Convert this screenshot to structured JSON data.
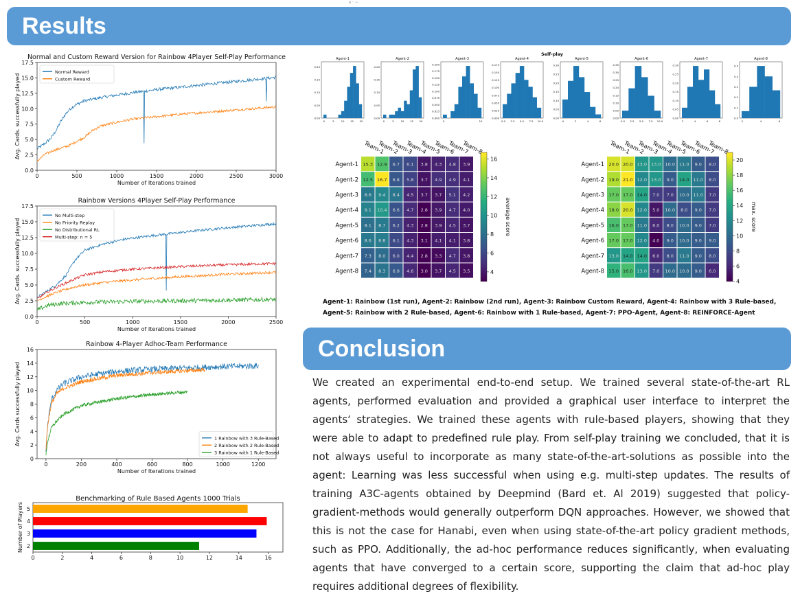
{
  "header": {
    "results_title": "Results",
    "conclusion_title": "Conclusion",
    "top_mark": "s · ∼"
  },
  "colors": {
    "banner": "#5b9bd5",
    "blue": "#1f77b4",
    "orange": "#ff7f0e",
    "green": "#2ca02c",
    "red": "#d62728"
  },
  "legend_text": "Agent-1: Rainbow (1st run), Agent-2: Rainbow (2nd run), Agent-3: Rainbow Custom Reward, Agent-4: Rainbow with 3 Rule-based, Agent-5: Rainbow with 2 Rule-based, Agent-6: Rainbow with 1 Rule-based, Agent-7: PPO-Agent, Agent-8: REINFORCE-Agent",
  "conclusion_text": "We created an experimental end-to-end setup. We trained several state-of-the-art RL agents, performed evaluation and provided a graphical user interface to interpret the agents‘ strategies. We trained these agents with rule-based players, showing that they were able to adapt to predefined rule play. From self-play training we concluded, that it is not always useful to incorporate as many state-of-the-art-solutions as possible into the agent: Learning was less successful when using e.g. multi-step updates. The results of training A3C-agents obtained by Deepmind (Bard et. Al 2019) suggested that policy-gradient-methods would generally outperform DQN approaches. However, we showed that this is not the case for Hanabi, even when using state-of-the-art policy gradient methods, such as PPO. Additionally, the ad-hoc performance reduces significantly, when evaluating agents that have converged to a certain score, supporting the claim that ad-hoc play requires additional degrees of flexibility.",
  "chart_data": [
    {
      "id": "reward",
      "type": "line",
      "title": "Normal and Custom Reward Version for Rainbow 4Player Self-Play Performance",
      "xlabel": "Number of Iterations trained",
      "ylabel": "Avg. Cards. successfully played",
      "xlim": [
        0,
        3000
      ],
      "ylim": [
        0,
        17.5
      ],
      "xticks": [
        0,
        500,
        1000,
        1500,
        2000,
        2500,
        3000
      ],
      "yticks": [
        0.0,
        2.5,
        5.0,
        7.5,
        10.0,
        12.5,
        15.0,
        17.5
      ],
      "legend": "top-left",
      "series": [
        {
          "name": "Normal Reward",
          "color": "#1f77b4",
          "noise": 0.25,
          "x": [
            0,
            60,
            120,
            180,
            240,
            300,
            360,
            420,
            480,
            600,
            800,
            1000,
            1200,
            1500,
            1800,
            2100,
            2400,
            2700,
            3000
          ],
          "y": [
            3.5,
            4.0,
            4.6,
            5.3,
            6.5,
            8.0,
            9.2,
            10.0,
            10.6,
            11.3,
            11.8,
            12.2,
            12.6,
            13.1,
            13.5,
            13.9,
            14.3,
            14.7,
            15.1
          ],
          "spikes": [
            [
              1340,
              4.4
            ],
            [
              2880,
              11.2
            ]
          ]
        },
        {
          "name": "Custom Reward",
          "color": "#ff7f0e",
          "noise": 0.2,
          "x": [
            0,
            100,
            200,
            300,
            400,
            500,
            600,
            700,
            800,
            1000,
            1200,
            1500,
            1800,
            2100,
            2400,
            2700,
            3000
          ],
          "y": [
            1.5,
            2.6,
            3.2,
            3.6,
            4.0,
            4.7,
            5.4,
            6.5,
            7.2,
            7.8,
            8.3,
            8.7,
            9.1,
            9.4,
            9.7,
            10.0,
            10.3
          ],
          "spikes": []
        }
      ]
    },
    {
      "id": "versions",
      "type": "line",
      "title": "Rainbow Versions 4Player Self-Play Performance",
      "xlabel": "Number of Iterations trained",
      "ylabel": "Avg. Cards. successfully played",
      "xlim": [
        0,
        2500
      ],
      "ylim": [
        0,
        17.5
      ],
      "xticks": [
        0,
        500,
        1000,
        1500,
        2000,
        2500
      ],
      "yticks": [
        0.0,
        2.5,
        5.0,
        7.5,
        10.0,
        12.5,
        15.0,
        17.5
      ],
      "legend": "top-left",
      "series": [
        {
          "name": "No Multi-step",
          "color": "#1f77b4",
          "noise": 0.2,
          "x": [
            0,
            100,
            200,
            300,
            400,
            500,
            700,
            900,
            1200,
            1500,
            1800,
            2100,
            2500
          ],
          "y": [
            3.0,
            4.0,
            5.0,
            6.5,
            9.0,
            10.5,
            11.5,
            12.2,
            12.8,
            13.3,
            13.8,
            14.2,
            14.7
          ],
          "spikes": [
            [
              1350,
              4.1
            ]
          ]
        },
        {
          "name": "No Priority Replay",
          "color": "#ff7f0e",
          "noise": 0.2,
          "x": [
            0,
            100,
            200,
            300,
            400,
            500,
            700,
            1000,
            1500,
            2000,
            2500
          ],
          "y": [
            2.5,
            3.2,
            3.8,
            4.3,
            4.7,
            5.0,
            5.4,
            5.8,
            6.3,
            6.7,
            7.0
          ],
          "spikes": []
        },
        {
          "name": "No Distributional RL",
          "color": "#2ca02c",
          "noise": 0.35,
          "x": [
            0,
            100,
            200,
            400,
            700,
            1000,
            1500,
            2000,
            2500
          ],
          "y": [
            1.0,
            1.7,
            2.0,
            2.2,
            2.3,
            2.4,
            2.5,
            2.6,
            2.7
          ],
          "spikes": []
        },
        {
          "name": "Multi-step: n = 5",
          "color": "#d62728",
          "noise": 0.2,
          "x": [
            0,
            100,
            200,
            300,
            400,
            500,
            700,
            1000,
            1500,
            2000,
            2500
          ],
          "y": [
            2.8,
            3.8,
            4.6,
            5.3,
            6.0,
            6.6,
            7.1,
            7.5,
            7.9,
            8.2,
            8.4
          ],
          "spikes": []
        }
      ]
    },
    {
      "id": "adhoc",
      "type": "line",
      "title": "Rainbow 4-Player Adhoc-Team Performance",
      "xlabel": "Number of Iterations trained",
      "ylabel": "Avg. Cards successfully played",
      "xlim": [
        -50,
        1300
      ],
      "ylim": [
        0,
        16
      ],
      "xticks": [
        0,
        200,
        400,
        600,
        800,
        1000,
        1200
      ],
      "yticks": [
        0,
        2,
        4,
        6,
        8,
        10,
        12,
        14,
        16
      ],
      "legend": "bottom-right",
      "series": [
        {
          "name": "1 Rainbow with 3 Rule-Based",
          "color": "#1f77b4",
          "noise": 0.45,
          "x": [
            0,
            10,
            30,
            60,
            100,
            200,
            400,
            600,
            800,
            1000,
            1200
          ],
          "y": [
            1.0,
            5.0,
            8.5,
            10.0,
            11.0,
            12.0,
            12.8,
            13.1,
            13.3,
            13.5,
            13.6
          ],
          "spikes": []
        },
        {
          "name": "2 Rainbow with 2 Rule-Based",
          "color": "#ff7f0e",
          "noise": 0.3,
          "x": [
            0,
            10,
            30,
            60,
            100,
            200,
            400,
            600,
            800,
            900
          ],
          "y": [
            1.5,
            5.0,
            8.0,
            9.5,
            10.3,
            11.3,
            12.2,
            12.6,
            12.9,
            13.0
          ],
          "spikes": []
        },
        {
          "name": "3 Rainbow with 1 Rule-Based",
          "color": "#2ca02c",
          "noise": 0.25,
          "x": [
            0,
            10,
            30,
            60,
            100,
            200,
            400,
            600,
            800
          ],
          "y": [
            0.5,
            2.5,
            4.5,
            5.5,
            6.5,
            7.8,
            8.8,
            9.4,
            9.8
          ],
          "spikes": []
        }
      ]
    },
    {
      "id": "bench",
      "type": "bar",
      "orientation": "horizontal",
      "title": "Benchmarking of Rule Based Agents 1000 Trials",
      "ylabel": "Number of Players",
      "categories": [
        "2",
        "3",
        "4",
        "5"
      ],
      "values": [
        11.3,
        15.2,
        15.9,
        14.6
      ],
      "colors": [
        "#008000",
        "#0000ff",
        "#ff0000",
        "#ffa500"
      ],
      "xlim": [
        0,
        17
      ],
      "xticks": [
        0,
        2,
        4,
        6,
        8,
        10,
        12,
        14,
        16
      ]
    },
    {
      "id": "selfplay",
      "type": "bar",
      "title": "Self-play",
      "panels": [
        {
          "name": "Agent-1",
          "values": [
            1,
            0,
            0,
            0,
            0,
            1,
            2,
            5,
            9,
            13,
            15,
            10,
            4
          ],
          "xticks": [
            "0",
            "5",
            "10",
            "15",
            "20"
          ],
          "yticks": [
            "0.00",
            "0.05",
            "0.10",
            "0.15",
            "0.20"
          ]
        },
        {
          "name": "Agent-2",
          "values": [
            1,
            0,
            1,
            1,
            2,
            3,
            2,
            5,
            4,
            8,
            14,
            15,
            6
          ],
          "xticks": [
            "0",
            "5",
            "10",
            "15",
            "20"
          ],
          "yticks": [
            "0.00",
            "0.05",
            "0.10",
            "0.15",
            "0.20"
          ]
        },
        {
          "name": "Agent-3",
          "values": [
            1,
            0,
            2,
            4,
            9,
            12,
            15,
            10,
            7,
            3
          ],
          "xticks": [
            "5",
            "10"
          ],
          "yticks": [
            "0.000",
            "0.025",
            "0.050",
            "0.075",
            "0.100",
            "0.125",
            "0.150",
            "0.175",
            "0.200"
          ]
        },
        {
          "name": "Agent-4",
          "values": [
            4,
            7,
            10,
            13,
            15,
            11,
            9,
            6,
            3
          ],
          "xticks": [
            "0.0",
            "2.5",
            "5.0",
            "7.5",
            "10.0"
          ],
          "yticks": [
            "0.000",
            "0.025",
            "0.050",
            "0.075",
            "0.100",
            "0.125",
            "0.150",
            "0.175"
          ]
        },
        {
          "name": "Agent-5",
          "values": [
            5,
            10,
            14,
            11,
            7,
            3,
            1
          ],
          "xticks": [
            "0",
            "2",
            "4",
            "6"
          ],
          "yticks": [
            "0.00",
            "0.05",
            "0.10",
            "0.15",
            "0.20",
            "0.25",
            "0.30"
          ]
        },
        {
          "name": "Agent-6",
          "values": [
            2,
            8,
            14,
            11,
            6,
            2
          ],
          "xticks": [
            "0.0",
            "2.5",
            "5.0",
            "7.5",
            "10.0"
          ],
          "yticks": [
            "0.00",
            "0.05",
            "0.10",
            "0.15",
            "0.20",
            "0.25",
            "0.30",
            "0.35"
          ]
        },
        {
          "name": "Agent-7",
          "values": [
            3,
            9,
            15,
            11,
            14,
            8,
            4
          ],
          "xticks": [
            "2",
            "4",
            "6",
            "8"
          ],
          "yticks": [
            "0.00",
            "0.05",
            "0.10",
            "0.15",
            "0.20",
            "0.25",
            "0.30"
          ]
        },
        {
          "name": "Agent-8",
          "values": [
            2,
            9,
            15,
            12,
            8
          ],
          "xticks": [
            "2",
            "4",
            "6"
          ],
          "yticks": [
            "0.0",
            "0.1",
            "0.2",
            "0.3",
            "0.4",
            "0.5"
          ]
        }
      ]
    },
    {
      "id": "avg-heatmap",
      "type": "heatmap",
      "columns": [
        "Team-1",
        "Team-2",
        "Team-3",
        "Team-4",
        "Team-5",
        "Team-6",
        "Team-7",
        "Team-8"
      ],
      "rows": [
        "Agent-1",
        "Agent-2",
        "Agent-3",
        "Agent-4",
        "Agent-5",
        "Agent-6",
        "Agent-7",
        "Agent-8"
      ],
      "values": [
        [
          15.3,
          12.9,
          6.7,
          6.1,
          3.8,
          4.3,
          4.8,
          3.9
        ],
        [
          12.5,
          16.7,
          6.8,
          5.8,
          3.7,
          4.9,
          4.9,
          4.1
        ],
        [
          8.6,
          9.4,
          8.4,
          4.5,
          3.7,
          3.7,
          5.1,
          4.2
        ],
        [
          9.1,
          10.4,
          6.6,
          4.7,
          2.8,
          3.9,
          4.7,
          4.0
        ],
        [
          8.1,
          8.7,
          6.2,
          4.3,
          2.8,
          3.9,
          4.5,
          3.7
        ],
        [
          8.6,
          8.8,
          6.1,
          4.3,
          3.1,
          4.1,
          4.1,
          3.8
        ],
        [
          7.3,
          8.0,
          6.0,
          4.4,
          2.8,
          3.3,
          4.7,
          3.8
        ],
        [
          7.4,
          8.3,
          6.9,
          4.6,
          3.0,
          3.7,
          4.5,
          3.5
        ]
      ],
      "vmin": 3,
      "vmax": 16.7,
      "colorbar_label": "average score",
      "colorbar_ticks": [
        4,
        6,
        8,
        10,
        12,
        14,
        16
      ]
    },
    {
      "id": "max-heatmap",
      "type": "heatmap",
      "columns": [
        "Team-1",
        "Team-2",
        "Team-3",
        "Team-4",
        "Team-5",
        "Team-6",
        "Team-7",
        "Team-8"
      ],
      "rows": [
        "Agent-1",
        "Agent-2",
        "Agent-3",
        "Agent-4",
        "Agent-5",
        "Agent-6",
        "Agent-7",
        "Agent-8"
      ],
      "values": [
        [
          20.0,
          20.0,
          13.0,
          13.0,
          10.0,
          11.0,
          9.0,
          8.0
        ],
        [
          19.0,
          21.0,
          12.0,
          13.0,
          9.0,
          14.0,
          11.0,
          8.0
        ],
        [
          17.0,
          17.0,
          14.0,
          7.0,
          7.0,
          10.0,
          11.0,
          7.0
        ],
        [
          18.0,
          20.0,
          12.0,
          5.0,
          10.0,
          8.0,
          9.0,
          7.0
        ],
        [
          16.0,
          17.0,
          11.0,
          6.0,
          8.0,
          10.0,
          9.0,
          7.0
        ],
        [
          17.0,
          17.0,
          12.0,
          4.0,
          9.0,
          10.0,
          9.0,
          9.0
        ],
        [
          13.0,
          14.0,
          14.0,
          6.0,
          8.0,
          11.0,
          9.0,
          8.0
        ],
        [
          15.0,
          16.0,
          13.0,
          7.0,
          10.0,
          10.0,
          9.0,
          6.0
        ]
      ],
      "vmin": 4,
      "vmax": 21,
      "colorbar_label": "max. score",
      "colorbar_ticks": [
        4,
        6,
        8,
        10,
        12,
        14,
        16,
        18,
        20
      ]
    }
  ]
}
